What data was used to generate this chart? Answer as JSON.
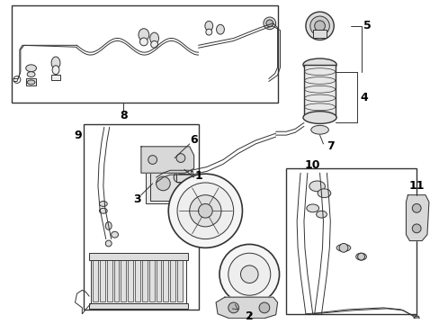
{
  "bg_color": "#ffffff",
  "line_color": "#333333",
  "label_color": "#000000",
  "figsize": [
    4.89,
    3.6
  ],
  "dpi": 100
}
